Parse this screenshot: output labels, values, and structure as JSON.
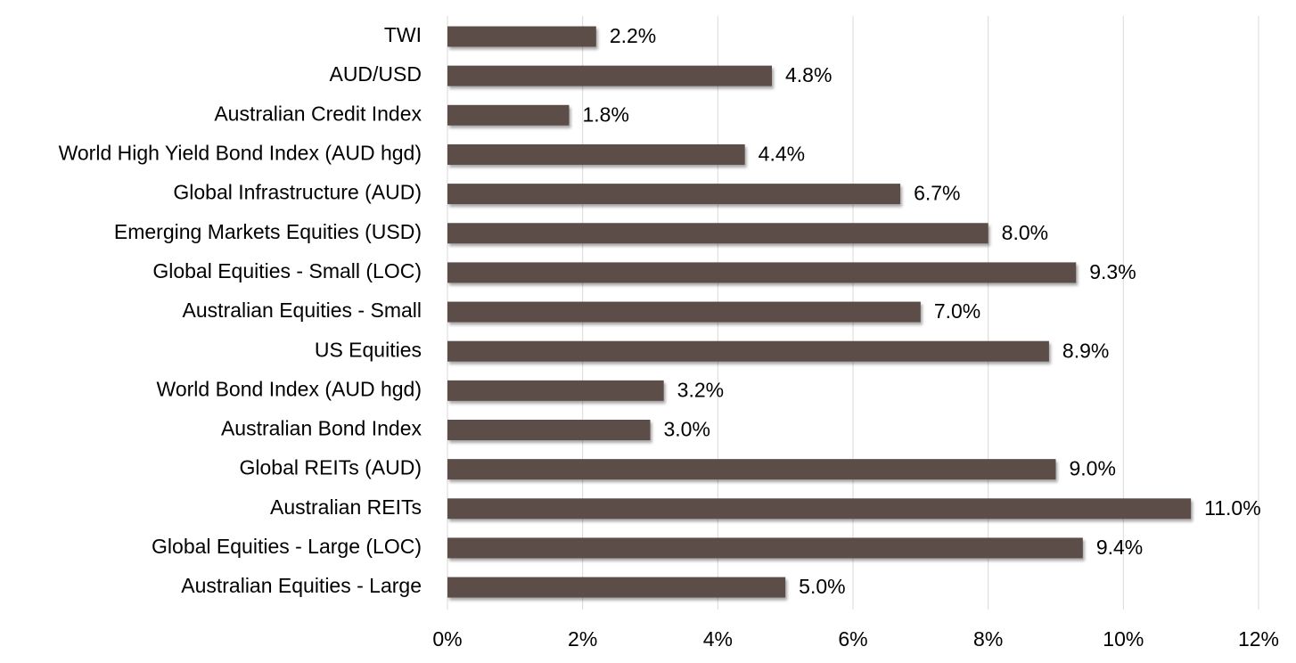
{
  "colors": {
    "bar": "#5b4e4a",
    "gridline": "#d9d9d9",
    "text": "#000000",
    "background": "#ffffff"
  },
  "chart_data": {
    "type": "bar",
    "orientation": "horizontal",
    "categories": [
      "TWI",
      "AUD/USD",
      "Australian Credit Index",
      "World High Yield Bond Index (AUD hgd)",
      "Global Infrastructure (AUD)",
      "Emerging Markets Equities (USD)",
      "Global Equities - Small (LOC)",
      "Australian Equities - Small",
      "US Equities",
      "World Bond Index (AUD hgd)",
      "Australian Bond Index",
      "Global REITs (AUD)",
      "Australian REITs",
      "Global Equities - Large (LOC)",
      "Australian Equities - Large"
    ],
    "values": [
      2.2,
      4.8,
      1.8,
      4.4,
      6.7,
      8.0,
      9.3,
      7.0,
      8.9,
      3.2,
      3.0,
      9.0,
      11.0,
      9.4,
      5.0
    ],
    "data_labels": [
      "2.2%",
      "4.8%",
      "1.8%",
      "4.4%",
      "6.7%",
      "8.0%",
      "9.3%",
      "7.0%",
      "8.9%",
      "3.2%",
      "3.0%",
      "9.0%",
      "11.0%",
      "9.4%",
      "5.0%"
    ],
    "xlim": [
      0,
      12
    ],
    "x_ticks": [
      0,
      2,
      4,
      6,
      8,
      10,
      12
    ],
    "x_tick_labels": [
      "0%",
      "2%",
      "4%",
      "6%",
      "8%",
      "10%",
      "12%"
    ],
    "title": "",
    "xlabel": "",
    "ylabel": "",
    "grid": "vertical",
    "legend": "none"
  }
}
